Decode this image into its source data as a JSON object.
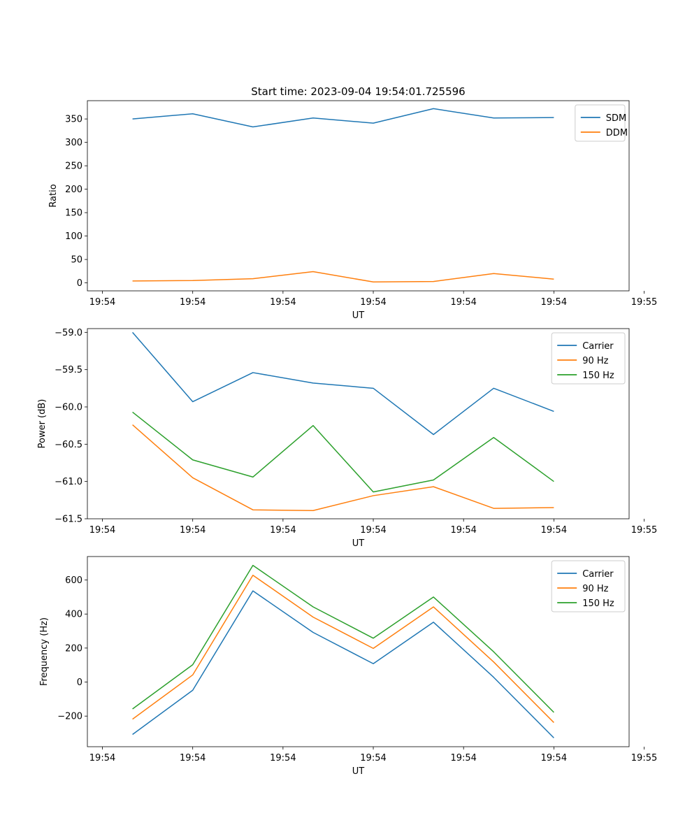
{
  "figure_title": "Start time: 2023-09-04 19:54:01.725596",
  "colors": {
    "blue": "#1f77b4",
    "orange": "#ff7f0e",
    "green": "#2ca02c"
  },
  "chart_data": [
    {
      "type": "line",
      "title": "Start time: 2023-09-04 19:54:01.725596",
      "xlabel": "UT",
      "ylabel": "Ratio",
      "x": [
        1,
        2,
        3,
        4,
        5,
        6,
        7,
        8
      ],
      "xlim": [
        0.25,
        9.25
      ],
      "xticks": [
        0.5,
        2,
        3.5,
        5,
        6.5,
        8,
        9.5
      ],
      "xtick_labels": [
        "19:54",
        "19:54",
        "19:54",
        "19:54",
        "19:54",
        "19:54",
        "19:55"
      ],
      "ylim": [
        -17,
        389
      ],
      "yticks": [
        0,
        50,
        100,
        150,
        200,
        250,
        300,
        350
      ],
      "ytick_labels": [
        "0",
        "50",
        "100",
        "150",
        "200",
        "250",
        "300",
        "350"
      ],
      "legend_position": "upper-right",
      "series": [
        {
          "name": "SDM",
          "color": "#1f77b4",
          "values": [
            350,
            361,
            333,
            352,
            341,
            372,
            352,
            353
          ]
        },
        {
          "name": "DDM",
          "color": "#ff7f0e",
          "values": [
            4,
            5,
            9,
            24,
            2,
            3,
            20,
            8
          ]
        }
      ]
    },
    {
      "type": "line",
      "title": "",
      "xlabel": "UT",
      "ylabel": "Power (dB)",
      "x": [
        1,
        2,
        3,
        4,
        5,
        6,
        7,
        8
      ],
      "xlim": [
        0.25,
        9.25
      ],
      "xticks": [
        0.5,
        2,
        3.5,
        5,
        6.5,
        8,
        9.5
      ],
      "xtick_labels": [
        "19:54",
        "19:54",
        "19:54",
        "19:54",
        "19:54",
        "19:54",
        "19:55"
      ],
      "ylim": [
        -61.5,
        -58.95
      ],
      "yticks": [
        -61.5,
        -61.0,
        -60.5,
        -60.0,
        -59.5,
        -59.0
      ],
      "ytick_labels": [
        "−61.5",
        "−61.0",
        "−60.5",
        "−60.0",
        "−59.5",
        "−59.0"
      ],
      "legend_position": "upper-right",
      "series": [
        {
          "name": "Carrier",
          "color": "#1f77b4",
          "values": [
            -59.0,
            -59.93,
            -59.54,
            -59.68,
            -59.75,
            -60.37,
            -59.75,
            -60.06
          ]
        },
        {
          "name": "90 Hz",
          "color": "#ff7f0e",
          "values": [
            -60.24,
            -60.95,
            -61.38,
            -61.39,
            -61.19,
            -61.07,
            -61.36,
            -61.35
          ]
        },
        {
          "name": "150 Hz",
          "color": "#2ca02c",
          "values": [
            -60.07,
            -60.71,
            -60.94,
            -60.25,
            -61.14,
            -60.98,
            -60.41,
            -61.0
          ]
        }
      ]
    },
    {
      "type": "line",
      "title": "",
      "xlabel": "UT",
      "ylabel": "Frequency (Hz)",
      "x": [
        1,
        2,
        3,
        4,
        5,
        6,
        7,
        8
      ],
      "xlim": [
        0.25,
        9.25
      ],
      "xticks": [
        0.5,
        2,
        3.5,
        5,
        6.5,
        8,
        9.5
      ],
      "xtick_labels": [
        "19:54",
        "19:54",
        "19:54",
        "19:54",
        "19:54",
        "19:54",
        "19:55"
      ],
      "ylim": [
        -380,
        738
      ],
      "yticks": [
        -200,
        0,
        200,
        400,
        600
      ],
      "ytick_labels": [
        "−200",
        "0",
        "200",
        "400",
        "600"
      ],
      "legend_position": "upper-right",
      "series": [
        {
          "name": "Carrier",
          "color": "#1f77b4",
          "values": [
            -308,
            -48,
            536,
            292,
            108,
            352,
            28,
            -328
          ]
        },
        {
          "name": "90 Hz",
          "color": "#ff7f0e",
          "values": [
            -218,
            42,
            628,
            382,
            198,
            442,
            118,
            -238
          ]
        },
        {
          "name": "150 Hz",
          "color": "#2ca02c",
          "values": [
            -158,
            102,
            686,
            442,
            258,
            500,
            178,
            -178
          ]
        }
      ]
    }
  ]
}
